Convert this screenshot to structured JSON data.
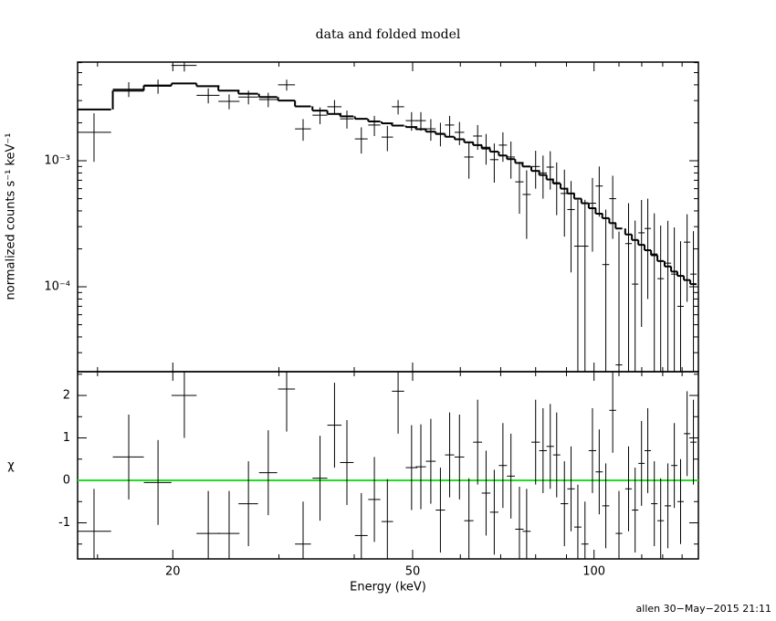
{
  "title": "data and folded model",
  "footer": "allen 30−May−2015 21:11",
  "chart_data": [
    {
      "type": "errorbar",
      "y_label": "normalized counts s⁻¹ keV⁻¹",
      "log_x": true,
      "log_y": true,
      "xlim": [
        13.9,
        149
      ],
      "ylim": [
        2.12e-05,
        0.00606
      ],
      "xticks": [
        20,
        50,
        100
      ],
      "xminorticks": [
        15,
        30,
        40,
        60,
        70,
        80,
        90,
        110,
        120,
        130,
        140
      ],
      "yticks": [
        {
          "value": 0.001,
          "label": "10⁻³"
        },
        {
          "value": 0.0001,
          "label": "10⁻⁴"
        }
      ],
      "yminorticks": [
        3e-05,
        4e-05,
        5e-05,
        6e-05,
        7e-05,
        8e-05,
        9e-05,
        0.0002,
        0.0003,
        0.0004,
        0.0005,
        0.0006,
        0.0007,
        0.0008,
        0.0009,
        0.002,
        0.003,
        0.004,
        0.005,
        0.006
      ],
      "color": "#000000",
      "model_color": "#000000",
      "x": [
        14.8,
        16.9,
        18.9,
        20.9,
        22.9,
        24.8,
        26.7,
        28.8,
        30.9,
        32.9,
        35.1,
        37.1,
        38.9,
        41.1,
        43.2,
        45.4,
        47.3,
        49.8,
        51.6,
        53.6,
        55.6,
        57.6,
        59.8,
        62.0,
        64.1,
        66.2,
        68.3,
        70.6,
        72.8,
        75.2,
        77.3,
        80.0,
        82.3,
        84.6,
        86.7,
        89.3,
        91.6,
        94.0,
        96.6,
        99.4,
        102.0,
        104.6,
        107.4,
        110.0,
        114.1,
        117.0,
        119.9,
        122.8,
        125.9,
        129.0,
        132.6,
        135.9,
        139.2,
        142.7,
        146.2
      ],
      "xerr": [
        1.0,
        1.0,
        1.0,
        1.0,
        1.0,
        1.0,
        1.0,
        1.0,
        1.0,
        1.0,
        1.0,
        1.0,
        1.0,
        1.0,
        1.0,
        1.0,
        1.1,
        1.1,
        1.0,
        1.0,
        1.0,
        1.0,
        1.1,
        1.1,
        1.1,
        1.1,
        1.1,
        1.1,
        1.1,
        1.2,
        1.2,
        1.3,
        1.2,
        1.2,
        1.2,
        1.3,
        1.3,
        1.3,
        1.3,
        1.4,
        1.4,
        1.4,
        1.4,
        1.4,
        1.45,
        1.45,
        1.45,
        1.5,
        1.55,
        1.6,
        1.65,
        1.65,
        1.7,
        1.75,
        1.75
      ],
      "values": [
        0.00168,
        0.0037,
        0.0039,
        0.0057,
        0.0033,
        0.00296,
        0.0032,
        0.00306,
        0.004,
        0.00179,
        0.0023,
        0.00268,
        0.00215,
        0.00149,
        0.00192,
        0.00154,
        0.00268,
        0.00208,
        0.00208,
        0.00179,
        0.00165,
        0.00192,
        0.00168,
        0.00107,
        0.00157,
        0.00128,
        0.00102,
        0.00133,
        0.00107,
        0.00068,
        0.00054,
        0.0009,
        0.0008,
        0.00089,
        0.00067,
        0.00055,
        0.00041,
        0.00021,
        0.00021,
        0.00046,
        0.00063,
        0.00015,
        0.0005,
        2.4e-05,
        0.00022,
        0.000105,
        0.000268,
        0.00029,
        0.000182,
        0.000116,
        0.000154,
        0.000126,
        7e-05,
        0.000226,
        0.000126
      ],
      "yerr": [
        0.0007,
        0.0005,
        0.0005,
        0.0006,
        0.00045,
        0.0004,
        0.0004,
        0.0004,
        0.0004,
        0.00035,
        0.00035,
        0.00035,
        0.00035,
        0.00035,
        0.00035,
        0.00035,
        0.00035,
        0.00035,
        0.00035,
        0.00035,
        0.00035,
        0.00035,
        0.00035,
        0.00035,
        0.00035,
        0.00035,
        0.00035,
        0.00035,
        0.00035,
        0.0003,
        0.0003,
        0.0003,
        0.0003,
        0.0003,
        0.0003,
        0.0003,
        0.00028,
        0.00028,
        0.00028,
        0.00027,
        0.00027,
        0.00026,
        0.00026,
        0.00025,
        0.00024,
        0.00023,
        0.00022,
        0.00021,
        0.0002,
        0.00019,
        0.00018,
        0.00017,
        0.00016,
        0.00015,
        0.00015
      ],
      "model": [
        0.00255,
        0.0036,
        0.00395,
        0.0041,
        0.0039,
        0.0036,
        0.0034,
        0.0032,
        0.003,
        0.0027,
        0.0025,
        0.00235,
        0.00225,
        0.00215,
        0.00205,
        0.00198,
        0.0019,
        0.00185,
        0.00178,
        0.0017,
        0.00163,
        0.00155,
        0.00148,
        0.0014,
        0.00133,
        0.00125,
        0.00118,
        0.0011,
        0.00103,
        0.00096,
        0.0009,
        0.00083,
        0.00077,
        0.00071,
        0.00066,
        0.0006,
        0.00055,
        0.0005,
        0.00046,
        0.00042,
        0.00038,
        0.00035,
        0.00032,
        0.00029,
        0.00026,
        0.000235,
        0.000215,
        0.000195,
        0.000178,
        0.00016,
        0.000145,
        0.000132,
        0.000122,
        0.000113,
        0.000105
      ]
    },
    {
      "type": "residuals",
      "y_label": "χ",
      "x_label": "Energy (keV)",
      "log_x": true,
      "xlim": [
        13.9,
        149
      ],
      "ylim": [
        -1.85,
        2.56
      ],
      "xticks": [
        20,
        50,
        100
      ],
      "xminorticks": [
        15,
        30,
        40,
        60,
        70,
        80,
        90,
        110,
        120,
        130,
        140
      ],
      "yticks": [
        -1,
        0,
        1,
        2
      ],
      "yminorticks": [
        -1.5,
        -0.5,
        0.5,
        1.5,
        2.5
      ],
      "color": "#000000",
      "reference_line": 0,
      "reference_color": "#22dd22",
      "x": [
        14.8,
        16.9,
        18.9,
        20.9,
        22.9,
        24.8,
        26.7,
        28.8,
        30.9,
        32.9,
        35.1,
        37.1,
        38.9,
        41.1,
        43.2,
        45.4,
        47.3,
        49.8,
        51.6,
        53.6,
        55.6,
        57.6,
        59.8,
        62.0,
        64.1,
        66.2,
        68.3,
        70.6,
        72.8,
        75.2,
        77.3,
        80.0,
        82.3,
        84.6,
        86.7,
        89.3,
        91.6,
        94.0,
        96.6,
        99.4,
        102.0,
        104.6,
        107.4,
        110.0,
        114.1,
        117.0,
        119.9,
        122.8,
        125.9,
        129.0,
        132.6,
        135.9,
        139.2,
        142.7,
        146.2
      ],
      "xerr": [
        1.0,
        1.0,
        1.0,
        1.0,
        1.0,
        1.0,
        1.0,
        1.0,
        1.0,
        1.0,
        1.0,
        1.0,
        1.0,
        1.0,
        1.0,
        1.0,
        1.1,
        1.1,
        1.0,
        1.0,
        1.0,
        1.0,
        1.1,
        1.1,
        1.1,
        1.1,
        1.1,
        1.1,
        1.1,
        1.2,
        1.2,
        1.3,
        1.2,
        1.2,
        1.2,
        1.3,
        1.3,
        1.3,
        1.3,
        1.4,
        1.4,
        1.4,
        1.4,
        1.4,
        1.45,
        1.45,
        1.45,
        1.5,
        1.55,
        1.6,
        1.65,
        1.65,
        1.7,
        1.75,
        1.75
      ],
      "values": [
        -1.2,
        0.55,
        -0.05,
        2.0,
        -1.25,
        -1.25,
        -0.55,
        0.18,
        2.15,
        -1.5,
        0.05,
        1.3,
        0.42,
        -1.3,
        -0.45,
        -0.97,
        2.1,
        0.3,
        0.32,
        0.45,
        -0.7,
        0.6,
        0.55,
        -0.95,
        0.9,
        -0.3,
        -0.75,
        0.35,
        0.1,
        -1.15,
        -1.2,
        0.9,
        0.7,
        0.8,
        0.6,
        -0.55,
        -0.2,
        -1.1,
        -1.5,
        0.7,
        0.2,
        -0.6,
        1.65,
        -1.25,
        -0.2,
        -0.7,
        0.4,
        0.7,
        -0.55,
        -0.95,
        -0.6,
        0.35,
        -0.5,
        1.1,
        0.9
      ],
      "yerr": [
        1,
        1,
        1,
        1,
        1,
        1,
        1,
        1,
        1,
        1,
        1,
        1,
        1,
        1,
        1,
        1,
        1,
        1,
        1,
        1,
        1,
        1,
        1,
        1,
        1,
        1,
        1,
        1,
        1,
        1,
        1,
        1,
        1,
        1,
        1,
        1,
        1,
        1,
        1,
        1,
        1,
        1,
        1,
        1,
        1,
        1,
        1,
        1,
        1,
        1,
        1,
        1,
        1,
        1,
        1
      ]
    }
  ]
}
